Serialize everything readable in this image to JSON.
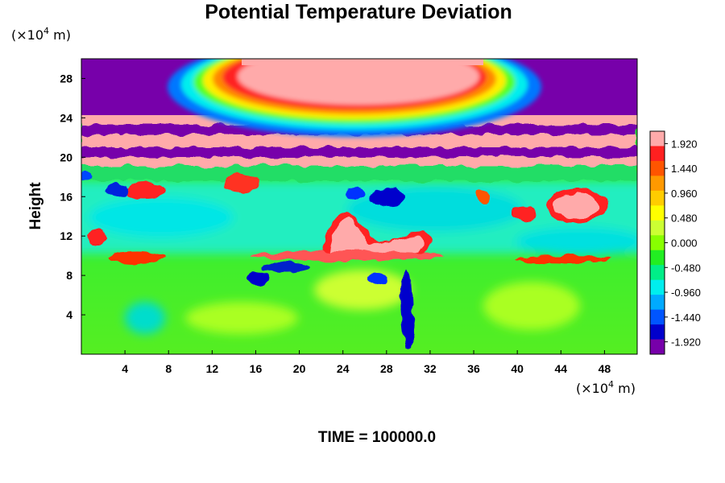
{
  "chart_data": {
    "type": "heatmap",
    "title": "Potential Temperature Deviation",
    "ylabel": "Height",
    "xlabel": "",
    "y_unit": {
      "prefix": "(×10",
      "exp": "4",
      "suffix": " m)"
    },
    "x_unit": {
      "prefix": "(×10",
      "exp": "4",
      "suffix": " m)"
    },
    "xlim": [
      0,
      51
    ],
    "ylim": [
      0,
      30
    ],
    "x_ticks": [
      "4",
      "8",
      "12",
      "16",
      "20",
      "24",
      "28",
      "32",
      "36",
      "40",
      "44",
      "48"
    ],
    "y_ticks": [
      "4",
      "8",
      "12",
      "16",
      "20",
      "24",
      "28"
    ],
    "colorbar": {
      "range": [
        -2.16,
        2.16
      ],
      "tick_labels": [
        "1.920",
        "1.440",
        "0.960",
        "0.480",
        "0.000",
        "-0.480",
        "-0.960",
        "-1.440",
        "-1.920"
      ],
      "colors": [
        "#ffaaaa",
        "#ff2020",
        "#ff5500",
        "#ff9900",
        "#ffcc00",
        "#ffff00",
        "#ccff33",
        "#88ff00",
        "#22ee22",
        "#00ee88",
        "#00eeee",
        "#00aaff",
        "#0055ff",
        "#0000cc",
        "#7700aa"
      ]
    },
    "grid": false,
    "legend": "right"
  },
  "footer": {
    "time_label": "TIME = 100000.0"
  }
}
